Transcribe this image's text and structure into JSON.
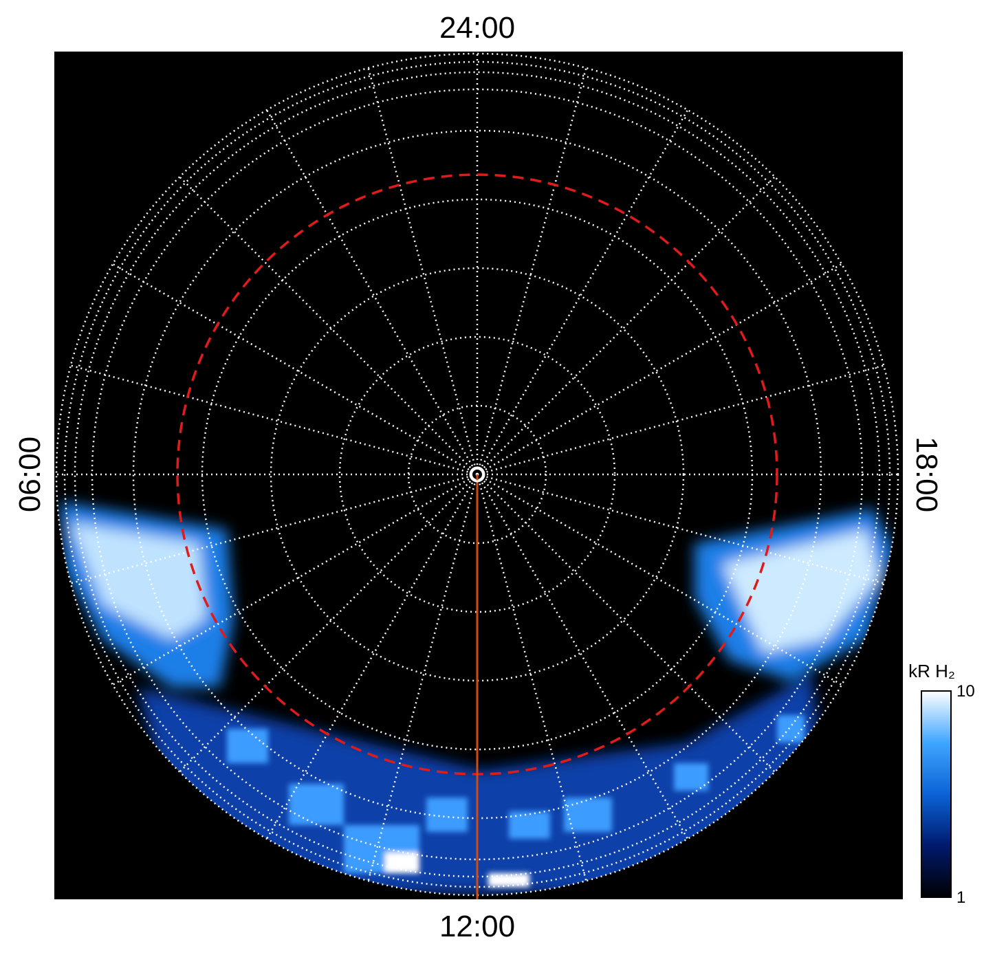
{
  "chart_data": {
    "type": "polar-map",
    "top_label": "24:00",
    "bottom_label": "12:00",
    "left_label": "06:00",
    "right_label": "18:00",
    "colorbar": {
      "label": "kR H₂",
      "lim": [
        1,
        10
      ],
      "ticks": [
        1,
        10
      ],
      "log": true,
      "colors": [
        "#000000",
        "#001a6e",
        "#0b63d6",
        "#3fa6ff",
        "#ffffff"
      ]
    }
  }
}
